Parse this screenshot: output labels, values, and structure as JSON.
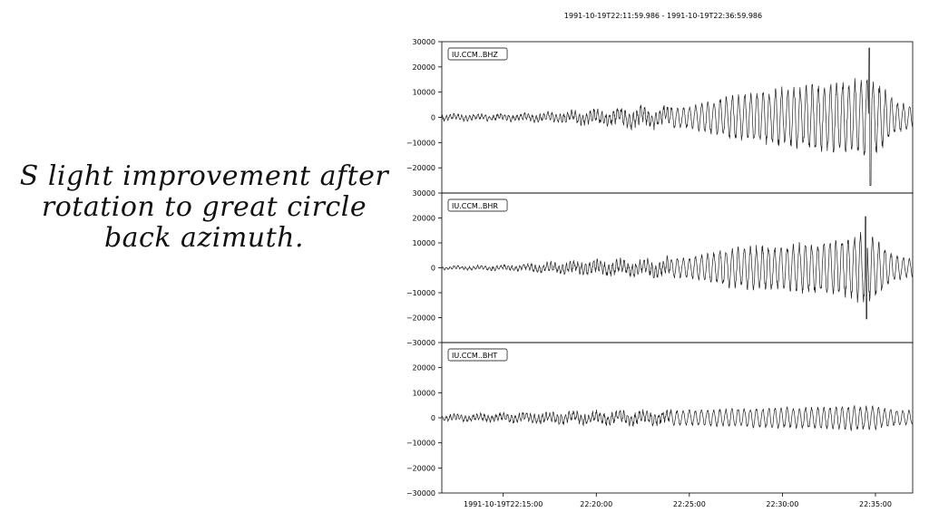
{
  "slide": {
    "caption_lines": [
      "S light improvement after",
      "rotation to great circle",
      "back azimuth."
    ]
  },
  "chart_data": {
    "type": "line",
    "title": "1991-10-19T22:11:59.986  -  1991-10-19T22:36:59.986",
    "x_tick_labels": [
      {
        "label": "1991-10-19T22:15:00",
        "minutes_after_2211": 3.0
      },
      {
        "label": "22:20:00",
        "minutes_after_2211": 8.0
      },
      {
        "label": "22:25:00",
        "minutes_after_2211": 13.0
      },
      {
        "label": "22:30:00",
        "minutes_after_2211": 18.0
      },
      {
        "label": "22:35:00",
        "minutes_after_2211": 23.0
      }
    ],
    "line_color": "#222222",
    "panels": [
      {
        "station": "IU.CCM..BHZ",
        "ylim": [
          -30000,
          30000
        ],
        "yticks": [
          30000,
          20000,
          10000,
          0,
          -10000,
          -20000
        ],
        "ytick_labels": [
          "30000",
          "20000",
          "10000",
          "0",
          "−10000",
          "−20000"
        ],
        "envelope_k": [
          [
            0,
            1500
          ],
          [
            3,
            1500
          ],
          [
            5,
            2000
          ],
          [
            7,
            3000
          ],
          [
            9,
            4000
          ],
          [
            11,
            4500
          ],
          [
            13,
            4500
          ],
          [
            14,
            6500
          ],
          [
            15,
            9000
          ],
          [
            16,
            10000
          ],
          [
            17,
            11000
          ],
          [
            18,
            12500
          ],
          [
            19,
            13000
          ],
          [
            20,
            14000
          ],
          [
            21,
            15000
          ],
          [
            22,
            16500
          ],
          [
            22.5,
            20000
          ],
          [
            23,
            16000
          ],
          [
            24,
            7500
          ],
          [
            25,
            4500
          ]
        ],
        "spike": {
          "t": 22.7,
          "up": 27500,
          "down": -27000
        }
      },
      {
        "station": "IU.CCM..BHR",
        "ylim": [
          -30000,
          30000
        ],
        "yticks": [
          30000,
          20000,
          10000,
          0,
          -10000,
          -20000,
          -30000
        ],
        "ytick_labels": [
          "30000",
          "20000",
          "10000",
          "0",
          "−10000",
          "−20000",
          "−30000"
        ],
        "envelope_k": [
          [
            0,
            800
          ],
          [
            3,
            1200
          ],
          [
            5,
            2000
          ],
          [
            7,
            3000
          ],
          [
            9,
            3500
          ],
          [
            11,
            4000
          ],
          [
            13,
            4500
          ],
          [
            14,
            6000
          ],
          [
            15,
            8000
          ],
          [
            16,
            9000
          ],
          [
            17,
            9500
          ],
          [
            18,
            10000
          ],
          [
            19,
            10500
          ],
          [
            20,
            11000
          ],
          [
            21,
            12000
          ],
          [
            22,
            14000
          ],
          [
            22.5,
            15500
          ],
          [
            23,
            12500
          ],
          [
            24,
            5500
          ],
          [
            25,
            4000
          ]
        ],
        "spike": {
          "t": 22.5,
          "up": 20500,
          "down": -20500
        }
      },
      {
        "station": "IU.CCM..BHT",
        "ylim": [
          -30000,
          30000
        ],
        "yticks": [
          20000,
          10000,
          0,
          -10000,
          -20000,
          -30000
        ],
        "ytick_labels": [
          "20000",
          "10000",
          "0",
          "−10000",
          "−20000",
          "−30000"
        ],
        "envelope_k": [
          [
            0,
            1500
          ],
          [
            3,
            2000
          ],
          [
            5,
            2500
          ],
          [
            7,
            2800
          ],
          [
            9,
            3000
          ],
          [
            11,
            3200
          ],
          [
            13,
            3300
          ],
          [
            15,
            3800
          ],
          [
            17,
            4200
          ],
          [
            19,
            4500
          ],
          [
            21,
            4800
          ],
          [
            22,
            5200
          ],
          [
            23,
            4800
          ],
          [
            24,
            3500
          ],
          [
            25,
            3000
          ]
        ],
        "spike": null
      }
    ]
  }
}
